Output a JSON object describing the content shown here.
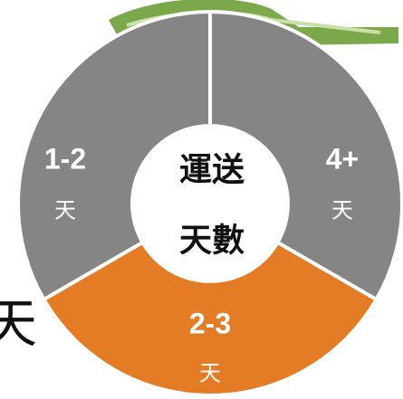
{
  "segments": [
    {
      "range": "1-2",
      "unit": "天"
    },
    {
      "range": "4+",
      "unit": "天"
    },
    {
      "range": "2-3",
      "unit": "天"
    }
  ],
  "center": {
    "line1": "運送",
    "line2": "天數"
  },
  "stray_text": "天"
}
